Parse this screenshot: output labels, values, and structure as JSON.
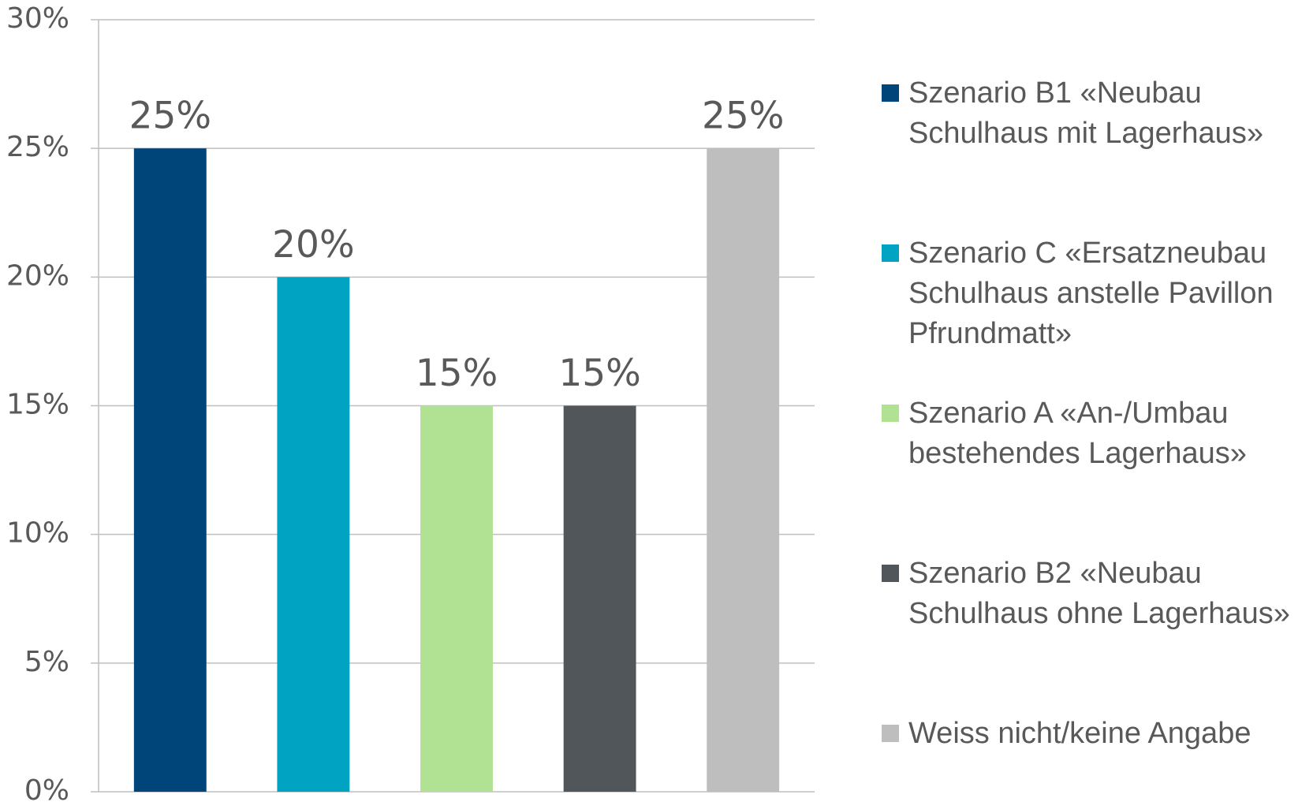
{
  "chart_data": {
    "type": "bar",
    "categories": [
      "Szenario B1 «Neubau Schulhaus mit Lagerhaus»",
      "Szenario C «Ersatzneubau Schulhaus anstelle Pavillon Pfrundmatt»",
      "Szenario A «An-/Umbau bestehendes Lagerhaus»",
      "Szenario B2 «Neubau Schulhaus ohne Lagerhaus»",
      "Weiss nicht/keine Angabe"
    ],
    "values": [
      25,
      20,
      15,
      15,
      25
    ],
    "value_labels": [
      "25%",
      "20%",
      "15%",
      "15%",
      "25%"
    ],
    "colors": [
      "#00457a",
      "#00a3c1",
      "#b1e193",
      "#51565a",
      "#bebebe"
    ],
    "ylim": [
      0,
      30
    ],
    "yticks": [
      {
        "value": 0,
        "label": "0%"
      },
      {
        "value": 5,
        "label": "5%"
      },
      {
        "value": 10,
        "label": "10%"
      },
      {
        "value": 15,
        "label": "15%"
      },
      {
        "value": 20,
        "label": "20%"
      },
      {
        "value": 25,
        "label": "25%"
      },
      {
        "value": 30,
        "label": "30%"
      }
    ],
    "grid": true,
    "legend": "right"
  }
}
